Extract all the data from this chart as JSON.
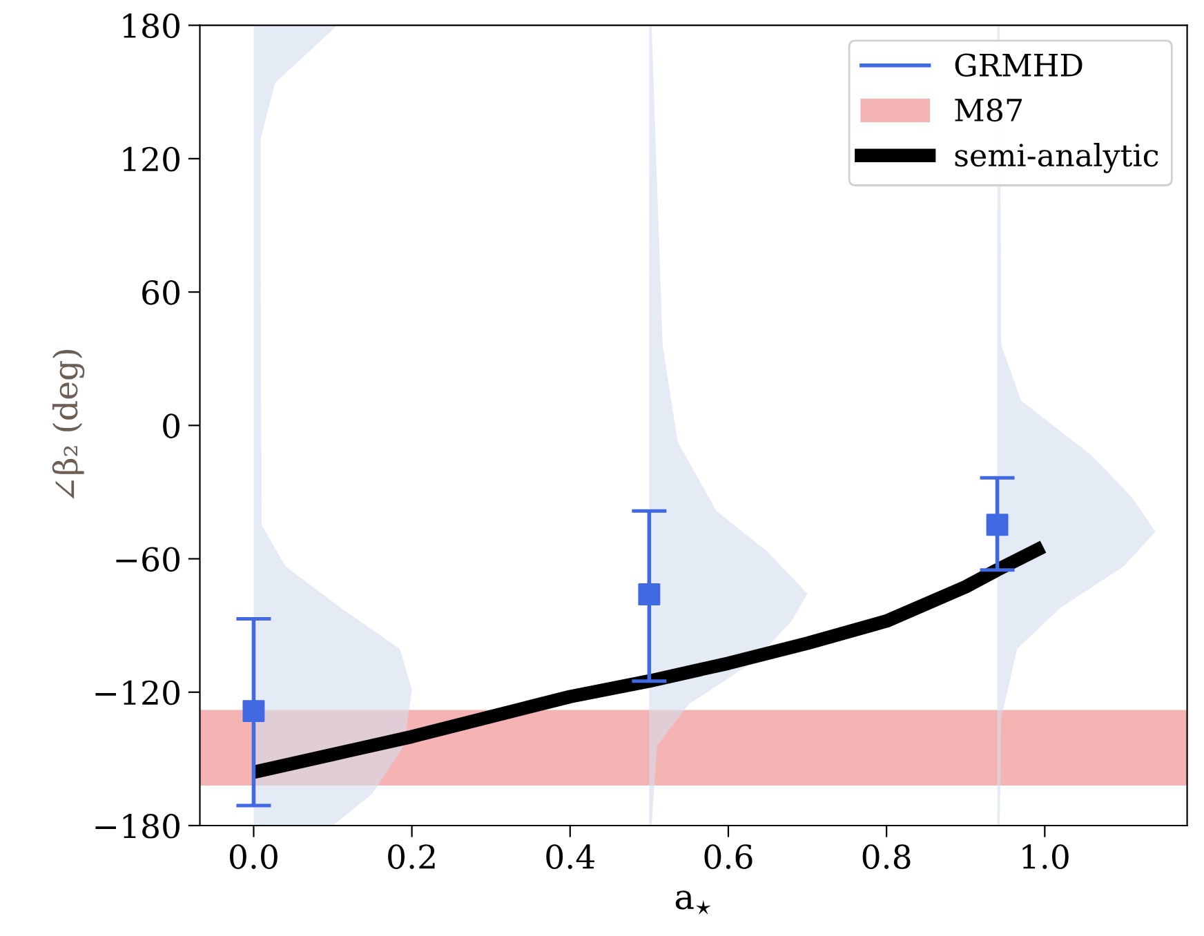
{
  "chart_data": {
    "type": "scatter",
    "xlabel": "a$_{⋆}$",
    "ylabel": "∠β₂ (deg)",
    "xlim": [
      -0.068,
      1.18
    ],
    "ylim": [
      -180,
      180
    ],
    "xticks": [
      {
        "value": 0,
        "label": "0.0"
      },
      {
        "value": 0.2,
        "label": "0.2"
      },
      {
        "value": 0.4,
        "label": "0.4"
      },
      {
        "value": 0.6,
        "label": "0.6"
      },
      {
        "value": 0.8,
        "label": "0.8"
      },
      {
        "value": 1,
        "label": "1.0"
      }
    ],
    "yticks": [
      {
        "value": -180,
        "label": "−180"
      },
      {
        "value": -120,
        "label": "−120"
      },
      {
        "value": -60,
        "label": "−60"
      },
      0,
      60,
      120,
      180
    ],
    "grid": false,
    "legend": "top right",
    "bands": [
      {
        "axis": "y",
        "from": -162,
        "to": -128,
        "label": "M87",
        "color": "#f4b4b4"
      }
    ],
    "series": [
      {
        "type": "area",
        "color": "#d3deed",
        "x": [
          0,
          0.106,
          0.027,
          0.009,
          0.009,
          0.01,
          0.04,
          0.11,
          0.185,
          0.2,
          0.19,
          0.15,
          0.1,
          0
        ],
        "values": [
          180,
          180,
          154,
          129,
          67,
          -44.7,
          -63.3,
          -82,
          -100.6,
          -119,
          -144,
          -165.7,
          -180,
          -180
        ]
      },
      {
        "type": "area",
        "color": "#d3deed",
        "x": [
          0.5,
          0.503,
          0.517,
          0.536,
          0.585,
          0.65,
          0.7,
          0.68,
          0.63,
          0.55,
          0.51,
          0.503,
          0.5
        ],
        "values": [
          180,
          180,
          36,
          -7.4,
          -38.5,
          -57,
          -75.7,
          -88,
          -106.8,
          -125.4,
          -144,
          -180,
          -180
        ]
      },
      {
        "type": "area",
        "color": "#d3deed",
        "x": [
          0.94,
          0.943,
          0.945,
          0.97,
          1.06,
          1.11,
          1.14,
          1.1,
          1.02,
          0.965,
          0.945,
          0.943,
          0.94
        ],
        "values": [
          180,
          180,
          36,
          11.2,
          -13.7,
          -32.3,
          -47.8,
          -63.3,
          -82,
          -100.6,
          -131.6,
          -180,
          -180
        ]
      },
      {
        "name": "GRMHD",
        "color": "#4169e1",
        "marker": "square",
        "x": [
          0,
          0.5,
          0.94
        ],
        "values": [
          -128.5,
          -76,
          -44.7
        ],
        "errors": [
          [
            -171,
            -87
          ],
          [
            -115,
            -38.5
          ],
          [
            -65,
            -23.6
          ]
        ]
      },
      {
        "name": "semi-analytic",
        "type": "line",
        "color": "#000000",
        "line_style": "solid",
        "marker": "none",
        "x": [
          0,
          0.1,
          0.2,
          0.3,
          0.4,
          0.5,
          0.6,
          0.7,
          0.8,
          0.9,
          0.94,
          0.998
        ],
        "values": [
          -156,
          -148,
          -140,
          -131,
          -122,
          -115,
          -107,
          -98,
          -88,
          -72.6,
          -65,
          -54.6
        ]
      }
    ]
  }
}
